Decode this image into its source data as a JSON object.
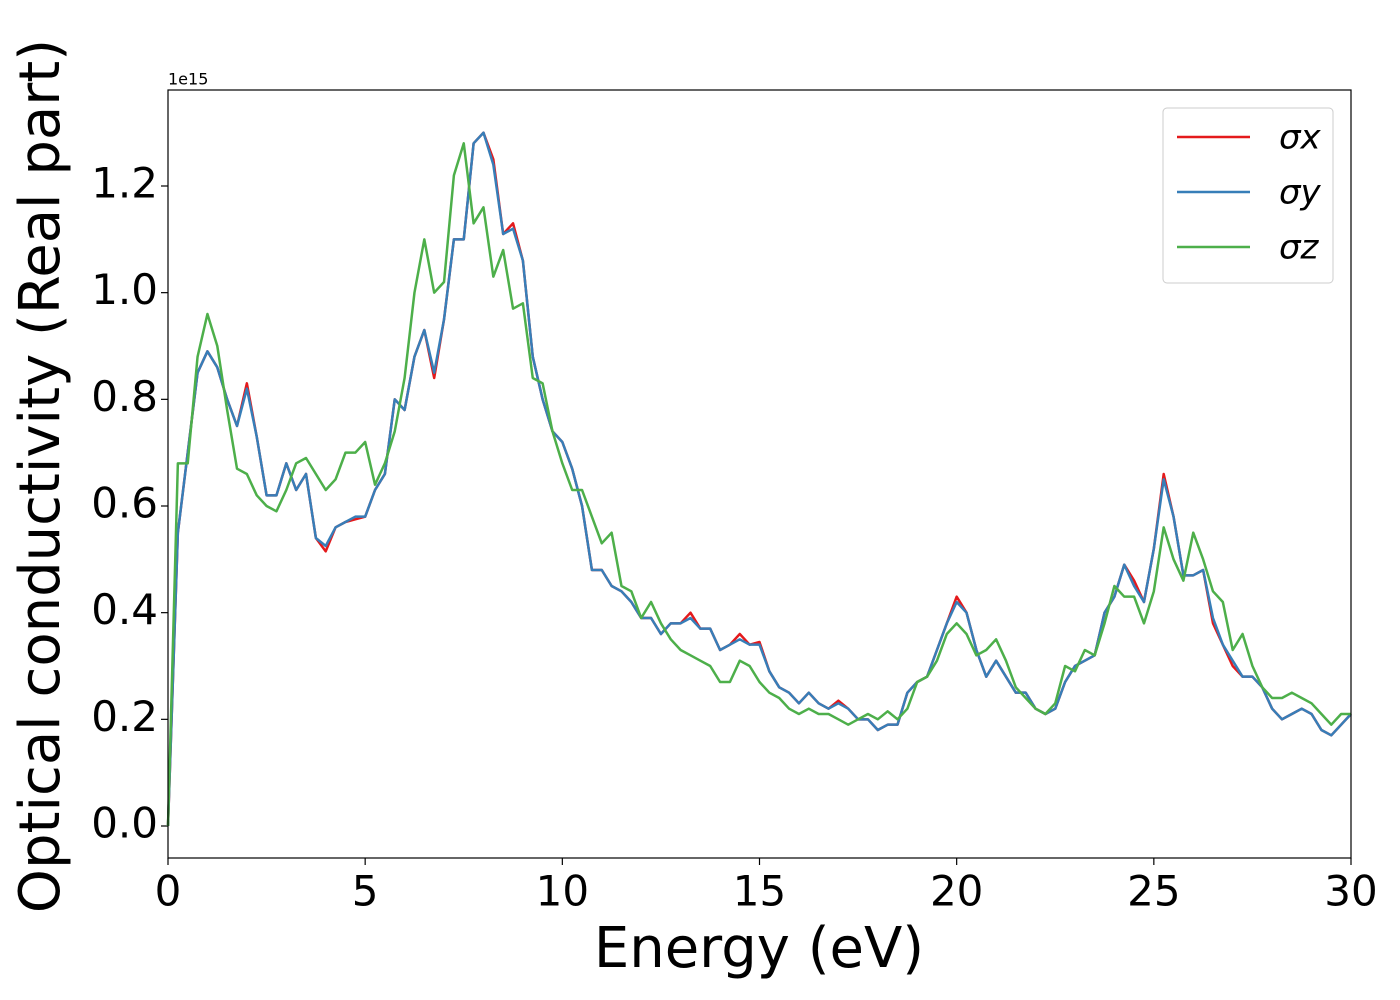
{
  "chart_data": {
    "type": "line",
    "xlabel": "Energy (eV)",
    "ylabel": "Optical conductivity (Real part)",
    "offset_label": "1e15",
    "xlim": [
      0,
      30
    ],
    "ylim": [
      -0.06,
      1.38
    ],
    "xticks": [
      0,
      5,
      10,
      15,
      20,
      25,
      30
    ],
    "yticks": [
      {
        "value": 0,
        "label": "0.0"
      },
      0.2,
      0.4,
      0.6,
      0.8,
      {
        "value": 1,
        "label": "1.0"
      },
      1.2
    ],
    "legend": "upper right",
    "x": [
      0,
      0.25,
      0.5,
      0.75,
      1,
      1.25,
      1.5,
      1.75,
      2,
      2.25,
      2.5,
      2.75,
      3,
      3.25,
      3.5,
      3.75,
      4,
      4.25,
      4.5,
      4.75,
      5,
      5.25,
      5.5,
      5.75,
      6,
      6.25,
      6.5,
      6.75,
      7,
      7.25,
      7.5,
      7.75,
      8,
      8.25,
      8.5,
      8.75,
      9,
      9.25,
      9.5,
      9.75,
      10,
      10.25,
      10.5,
      10.75,
      11,
      11.25,
      11.5,
      11.75,
      12,
      12.25,
      12.5,
      12.75,
      13,
      13.25,
      13.5,
      13.75,
      14,
      14.25,
      14.5,
      14.75,
      15,
      15.25,
      15.5,
      15.75,
      16,
      16.25,
      16.5,
      16.75,
      17,
      17.25,
      17.5,
      17.75,
      18,
      18.25,
      18.5,
      18.75,
      19,
      19.25,
      19.5,
      19.75,
      20,
      20.25,
      20.5,
      20.75,
      21,
      21.25,
      21.5,
      21.75,
      22,
      22.25,
      22.5,
      22.75,
      23,
      23.25,
      23.5,
      23.75,
      24,
      24.25,
      24.5,
      24.75,
      25,
      25.25,
      25.5,
      25.75,
      26,
      26.25,
      26.5,
      26.75,
      27,
      27.25,
      27.5,
      27.75,
      28,
      28.25,
      28.5,
      28.75,
      29,
      29.25,
      29.5,
      29.75,
      30
    ],
    "series": [
      {
        "name": "σx",
        "color": "#e41a1c",
        "values": [
          0,
          0.55,
          0.7,
          0.85,
          0.89,
          0.86,
          0.8,
          0.75,
          0.83,
          0.73,
          0.62,
          0.62,
          0.68,
          0.63,
          0.66,
          0.54,
          0.515,
          0.56,
          0.57,
          0.575,
          0.58,
          0.63,
          0.66,
          0.8,
          0.78,
          0.88,
          0.93,
          0.84,
          0.95,
          1.1,
          1.1,
          1.28,
          1.3,
          1.25,
          1.11,
          1.13,
          1.06,
          0.88,
          0.8,
          0.74,
          0.72,
          0.67,
          0.6,
          0.48,
          0.48,
          0.45,
          0.44,
          0.42,
          0.39,
          0.39,
          0.36,
          0.38,
          0.38,
          0.4,
          0.37,
          0.37,
          0.33,
          0.34,
          0.36,
          0.34,
          0.345,
          0.29,
          0.26,
          0.25,
          0.23,
          0.25,
          0.23,
          0.22,
          0.235,
          0.22,
          0.2,
          0.2,
          0.18,
          0.19,
          0.19,
          0.25,
          0.27,
          0.28,
          0.33,
          0.38,
          0.43,
          0.4,
          0.33,
          0.28,
          0.31,
          0.28,
          0.25,
          0.25,
          0.22,
          0.21,
          0.22,
          0.27,
          0.3,
          0.31,
          0.32,
          0.4,
          0.43,
          0.49,
          0.46,
          0.42,
          0.52,
          0.66,
          0.58,
          0.47,
          0.47,
          0.48,
          0.38,
          0.34,
          0.3,
          0.28,
          0.28,
          0.26,
          0.22,
          0.2,
          0.21,
          0.22,
          0.21,
          0.18,
          0.17,
          0.19,
          0.21
        ]
      },
      {
        "name": "σy",
        "color": "#377eb8",
        "values": [
          0,
          0.55,
          0.7,
          0.85,
          0.89,
          0.86,
          0.8,
          0.75,
          0.82,
          0.73,
          0.62,
          0.62,
          0.68,
          0.63,
          0.66,
          0.54,
          0.525,
          0.56,
          0.57,
          0.58,
          0.58,
          0.63,
          0.66,
          0.8,
          0.78,
          0.88,
          0.93,
          0.85,
          0.95,
          1.1,
          1.1,
          1.28,
          1.3,
          1.24,
          1.11,
          1.12,
          1.06,
          0.88,
          0.8,
          0.74,
          0.72,
          0.67,
          0.6,
          0.48,
          0.48,
          0.45,
          0.44,
          0.42,
          0.39,
          0.39,
          0.36,
          0.38,
          0.38,
          0.39,
          0.37,
          0.37,
          0.33,
          0.34,
          0.35,
          0.34,
          0.34,
          0.29,
          0.26,
          0.25,
          0.23,
          0.25,
          0.23,
          0.22,
          0.23,
          0.22,
          0.2,
          0.2,
          0.18,
          0.19,
          0.19,
          0.25,
          0.27,
          0.28,
          0.33,
          0.38,
          0.42,
          0.4,
          0.33,
          0.28,
          0.31,
          0.28,
          0.25,
          0.25,
          0.22,
          0.21,
          0.22,
          0.27,
          0.3,
          0.31,
          0.32,
          0.4,
          0.43,
          0.49,
          0.45,
          0.42,
          0.52,
          0.65,
          0.58,
          0.47,
          0.47,
          0.48,
          0.39,
          0.34,
          0.31,
          0.28,
          0.28,
          0.26,
          0.22,
          0.2,
          0.21,
          0.22,
          0.21,
          0.18,
          0.17,
          0.19,
          0.21
        ]
      },
      {
        "name": "σz",
        "color": "#4daf4a",
        "values": [
          0,
          0.68,
          0.68,
          0.88,
          0.96,
          0.9,
          0.78,
          0.67,
          0.66,
          0.62,
          0.6,
          0.59,
          0.63,
          0.68,
          0.69,
          0.66,
          0.63,
          0.65,
          0.7,
          0.7,
          0.72,
          0.64,
          0.68,
          0.74,
          0.84,
          1.0,
          1.1,
          1.0,
          1.02,
          1.22,
          1.28,
          1.13,
          1.16,
          1.03,
          1.08,
          0.97,
          0.98,
          0.84,
          0.83,
          0.74,
          0.68,
          0.63,
          0.63,
          0.58,
          0.53,
          0.55,
          0.45,
          0.44,
          0.39,
          0.42,
          0.38,
          0.35,
          0.33,
          0.32,
          0.31,
          0.3,
          0.27,
          0.27,
          0.31,
          0.3,
          0.27,
          0.25,
          0.24,
          0.22,
          0.21,
          0.22,
          0.21,
          0.21,
          0.2,
          0.19,
          0.2,
          0.21,
          0.2,
          0.215,
          0.2,
          0.22,
          0.27,
          0.28,
          0.31,
          0.36,
          0.38,
          0.36,
          0.32,
          0.33,
          0.35,
          0.31,
          0.26,
          0.24,
          0.22,
          0.21,
          0.23,
          0.3,
          0.29,
          0.33,
          0.32,
          0.38,
          0.45,
          0.43,
          0.43,
          0.38,
          0.44,
          0.56,
          0.5,
          0.46,
          0.55,
          0.5,
          0.44,
          0.42,
          0.33,
          0.36,
          0.3,
          0.26,
          0.24,
          0.24,
          0.25,
          0.24,
          0.23,
          0.21,
          0.19,
          0.21,
          0.21
        ]
      }
    ]
  }
}
